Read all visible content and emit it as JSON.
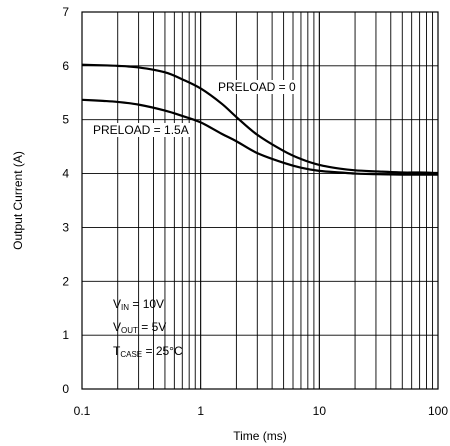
{
  "chart_data": {
    "type": "line",
    "xlabel": "Time  (ms)",
    "ylabel": "Output Current  (A)",
    "xscale": "log",
    "xlim": [
      0.1,
      100
    ],
    "ylim": [
      0,
      7
    ],
    "x_ticks": [
      {
        "value": 0.1,
        "label": "0.1"
      },
      {
        "value": 1,
        "label": "1"
      },
      {
        "value": 10,
        "label": "10"
      },
      {
        "value": 100,
        "label": "100"
      }
    ],
    "y_ticks": [
      {
        "value": 0,
        "label": "0"
      },
      {
        "value": 1,
        "label": "1"
      },
      {
        "value": 2,
        "label": "2"
      },
      {
        "value": 3,
        "label": "3"
      },
      {
        "value": 4,
        "label": "4"
      },
      {
        "value": 5,
        "label": "5"
      },
      {
        "value": 6,
        "label": "6"
      },
      {
        "value": 7,
        "label": "7"
      }
    ],
    "grid": true,
    "series": [
      {
        "name": "PRELOAD = 0",
        "x": [
          0.1,
          0.15,
          0.2,
          0.3,
          0.5,
          0.7,
          1,
          1.5,
          2,
          3,
          5,
          7,
          10,
          15,
          20,
          30,
          50,
          70,
          100
        ],
        "y": [
          6.02,
          6.01,
          6.0,
          5.97,
          5.88,
          5.75,
          5.58,
          5.3,
          5.05,
          4.72,
          4.42,
          4.27,
          4.16,
          4.09,
          4.06,
          4.04,
          4.02,
          4.02,
          4.01
        ]
      },
      {
        "name": "PRELOAD = 1.5A",
        "x": [
          0.1,
          0.15,
          0.2,
          0.3,
          0.5,
          0.7,
          1,
          1.5,
          2,
          3,
          5,
          7,
          10,
          15,
          20,
          30,
          50,
          70,
          100
        ],
        "y": [
          5.37,
          5.35,
          5.33,
          5.28,
          5.17,
          5.07,
          4.95,
          4.74,
          4.6,
          4.38,
          4.2,
          4.11,
          4.05,
          4.02,
          4.0,
          3.99,
          3.98,
          3.98,
          3.98
        ]
      }
    ],
    "annotations": {
      "preload0": "PRELOAD = 0",
      "preload15": "PRELOAD = 1.5A",
      "vin": {
        "main": "V",
        "sub": "IN",
        "rest": " = 10V"
      },
      "vout": {
        "main": "V",
        "sub": "OUT",
        "rest": " = 5V"
      },
      "tcase": {
        "main": "T",
        "sub": "CASE",
        "rest": " = 25°C"
      }
    }
  }
}
